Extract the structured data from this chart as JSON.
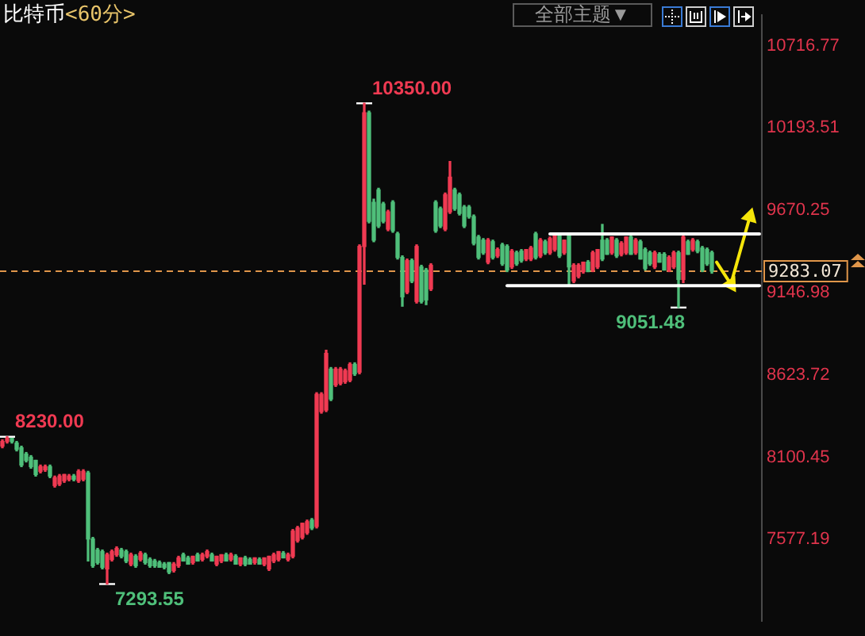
{
  "chart_data": {
    "type": "candlestick",
    "title": "比特币",
    "subtitle": "<60分>",
    "categories": [
      null,
      null,
      null,
      null,
      null,
      null,
      null,
      null,
      null,
      null,
      null,
      null,
      null,
      null,
      null,
      null,
      null,
      null,
      null,
      null,
      null,
      null,
      null,
      null,
      null,
      null,
      null,
      null,
      null,
      null,
      null,
      null,
      null,
      null,
      null,
      null,
      null,
      null,
      null,
      null,
      null,
      null,
      null,
      null,
      null,
      null,
      null,
      null,
      null,
      null,
      null,
      null,
      null,
      null,
      null,
      null,
      null,
      null,
      null,
      null,
      null,
      null,
      null,
      null,
      null,
      null,
      null,
      null,
      null,
      null,
      null,
      null,
      null,
      null,
      null,
      null,
      null,
      null,
      null,
      null,
      null,
      null,
      null,
      null,
      null,
      null,
      null,
      null,
      null,
      null,
      null,
      null,
      null,
      null,
      null,
      null,
      null,
      null,
      null,
      null,
      null,
      null,
      null,
      null,
      null,
      null,
      null,
      null,
      null,
      null,
      null,
      null,
      null,
      null,
      null,
      null,
      null,
      null,
      null,
      null,
      null,
      null,
      null,
      null,
      null,
      null,
      null,
      null,
      null,
      null,
      null,
      null,
      null,
      null,
      null,
      null,
      null,
      null,
      null,
      null,
      null,
      null,
      null,
      null,
      null,
      null,
      null,
      null,
      null,
      null,
      null,
      null,
      null,
      null,
      null,
      null,
      null,
      null,
      null,
      null
    ],
    "ohlc": [
      [
        8170,
        8210,
        8160,
        8200
      ],
      [
        8200,
        8230,
        8190,
        8220
      ],
      [
        8220,
        8220,
        8190,
        8200
      ],
      [
        8190,
        8200,
        8140,
        8150
      ],
      [
        8160,
        8170,
        8040,
        8050
      ],
      [
        8120,
        8130,
        8070,
        8080
      ],
      [
        8100,
        8110,
        8030,
        8040
      ],
      [
        8080,
        8080,
        7980,
        7990
      ],
      [
        8010,
        8050,
        8000,
        8040
      ],
      [
        8020,
        8050,
        8010,
        8040
      ],
      [
        8040,
        8050,
        7970,
        7980
      ],
      [
        7920,
        7980,
        7910,
        7970
      ],
      [
        7930,
        7990,
        7920,
        7980
      ],
      [
        7950,
        7990,
        7940,
        7990
      ],
      [
        7960,
        7990,
        7950,
        7980
      ],
      [
        7980,
        7990,
        7950,
        7960
      ],
      [
        7950,
        8020,
        7940,
        8010
      ],
      [
        7960,
        8020,
        7950,
        8010
      ],
      [
        8000,
        8010,
        7440,
        7580
      ],
      [
        7580,
        7590,
        7400,
        7410
      ],
      [
        7510,
        7520,
        7420,
        7430
      ],
      [
        7500,
        7510,
        7390,
        7400
      ],
      [
        7390,
        7490,
        7293.55,
        7480
      ],
      [
        7450,
        7510,
        7440,
        7500
      ],
      [
        7480,
        7530,
        7470,
        7520
      ],
      [
        7510,
        7520,
        7460,
        7470
      ],
      [
        7500,
        7510,
        7430,
        7440
      ],
      [
        7420,
        7490,
        7410,
        7480
      ],
      [
        7470,
        7480,
        7400,
        7410
      ],
      [
        7450,
        7500,
        7440,
        7490
      ],
      [
        7480,
        7490,
        7420,
        7430
      ],
      [
        7450,
        7460,
        7400,
        7410
      ],
      [
        7440,
        7450,
        7400,
        7410
      ],
      [
        7430,
        7440,
        7400,
        7400
      ],
      [
        7420,
        7430,
        7390,
        7400
      ],
      [
        7430,
        7430,
        7360,
        7370
      ],
      [
        7380,
        7430,
        7370,
        7420
      ],
      [
        7410,
        7470,
        7400,
        7460
      ],
      [
        7480,
        7490,
        7440,
        7440
      ],
      [
        7460,
        7470,
        7420,
        7420
      ],
      [
        7430,
        7470,
        7420,
        7470
      ],
      [
        7480,
        7490,
        7440,
        7440
      ],
      [
        7450,
        7490,
        7440,
        7480
      ],
      [
        7470,
        7510,
        7460,
        7500
      ],
      [
        7480,
        7490,
        7440,
        7440
      ],
      [
        7420,
        7470,
        7410,
        7470
      ],
      [
        7440,
        7480,
        7430,
        7480
      ],
      [
        7480,
        7490,
        7440,
        7440
      ],
      [
        7450,
        7490,
        7440,
        7480
      ],
      [
        7470,
        7480,
        7420,
        7420
      ],
      [
        7420,
        7460,
        7410,
        7460
      ],
      [
        7460,
        7470,
        7410,
        7420
      ],
      [
        7450,
        7460,
        7420,
        7420
      ],
      [
        7430,
        7460,
        7420,
        7460
      ],
      [
        7450,
        7460,
        7420,
        7420
      ],
      [
        7420,
        7460,
        7410,
        7460
      ],
      [
        7390,
        7470,
        7380,
        7470
      ],
      [
        7440,
        7490,
        7430,
        7480
      ],
      [
        7450,
        7500,
        7440,
        7500
      ],
      [
        7490,
        7500,
        7460,
        7460
      ],
      [
        7450,
        7490,
        7440,
        7480
      ],
      [
        7470,
        7640,
        7460,
        7630
      ],
      [
        7570,
        7660,
        7560,
        7650
      ],
      [
        7590,
        7680,
        7580,
        7680
      ],
      [
        7620,
        7700,
        7610,
        7690
      ],
      [
        7700,
        7710,
        7640,
        7650
      ],
      [
        7660,
        8510,
        7650,
        8500
      ],
      [
        8390,
        8510,
        8380,
        8500
      ],
      [
        8400,
        8780,
        8390,
        8760
      ],
      [
        8660,
        8670,
        8460,
        8470
      ],
      [
        8560,
        8670,
        8550,
        8660
      ],
      [
        8570,
        8670,
        8560,
        8660
      ],
      [
        8580,
        8660,
        8570,
        8650
      ],
      [
        8590,
        8700,
        8580,
        8690
      ],
      [
        8690,
        8700,
        8620,
        8630
      ],
      [
        8640,
        9450,
        8630,
        9440
      ],
      [
        9440,
        10350,
        9200,
        10290
      ],
      [
        10290,
        10300,
        9590,
        9600
      ],
      [
        9720,
        9740,
        9470,
        9480
      ],
      [
        9800,
        9810,
        9560,
        9570
      ],
      [
        9710,
        9720,
        9590,
        9600
      ],
      [
        9550,
        9670,
        9540,
        9660
      ],
      [
        9720,
        9730,
        9530,
        9540
      ],
      [
        9520,
        9530,
        9360,
        9370
      ],
      [
        9370,
        9380,
        9060,
        9120
      ],
      [
        9150,
        9360,
        9140,
        9350
      ],
      [
        9350,
        9360,
        9210,
        9220
      ],
      [
        9090,
        9450,
        9080,
        9440
      ],
      [
        9310,
        9320,
        9080,
        9090
      ],
      [
        9290,
        9300,
        9070,
        9100
      ],
      [
        9170,
        9330,
        9160,
        9320
      ],
      [
        9720,
        9730,
        9530,
        9540
      ],
      [
        9680,
        9690,
        9560,
        9570
      ],
      [
        9550,
        9780,
        9540,
        9770
      ],
      [
        9660,
        9980,
        9650,
        9880
      ],
      [
        9800,
        9810,
        9670,
        9680
      ],
      [
        9770,
        9780,
        9640,
        9650
      ],
      [
        9690,
        9700,
        9560,
        9570
      ],
      [
        9690,
        9700,
        9620,
        9630
      ],
      [
        9630,
        9640,
        9450,
        9460
      ],
      [
        9500,
        9510,
        9360,
        9370
      ],
      [
        9480,
        9490,
        9390,
        9400
      ],
      [
        9340,
        9490,
        9330,
        9480
      ],
      [
        9470,
        9480,
        9360,
        9370
      ],
      [
        9380,
        9430,
        9370,
        9420
      ],
      [
        9450,
        9460,
        9320,
        9330
      ],
      [
        9440,
        9450,
        9280,
        9290
      ],
      [
        9310,
        9420,
        9300,
        9410
      ],
      [
        9400,
        9410,
        9320,
        9330
      ],
      [
        9410,
        9420,
        9340,
        9350
      ],
      [
        9360,
        9420,
        9350,
        9420
      ],
      [
        9360,
        9440,
        9350,
        9430
      ],
      [
        9520,
        9530,
        9360,
        9370
      ],
      [
        9380,
        9490,
        9370,
        9480
      ],
      [
        9470,
        9480,
        9390,
        9400
      ],
      [
        9400,
        9500,
        9390,
        9490
      ],
      [
        9420,
        9520,
        9410,
        9510
      ],
      [
        9510,
        9520,
        9370,
        9380
      ],
      [
        9400,
        9480,
        9390,
        9480
      ],
      [
        9510,
        9520,
        9200,
        9310
      ],
      [
        9220,
        9330,
        9210,
        9320
      ],
      [
        9250,
        9330,
        9240,
        9320
      ],
      [
        9280,
        9340,
        9270,
        9340
      ],
      [
        9340,
        9350,
        9280,
        9280
      ],
      [
        9290,
        9410,
        9280,
        9400
      ],
      [
        9310,
        9420,
        9300,
        9420
      ],
      [
        9480,
        9580,
        9350,
        9360
      ],
      [
        9480,
        9490,
        9390,
        9390
      ],
      [
        9400,
        9500,
        9390,
        9500
      ],
      [
        9480,
        9490,
        9370,
        9380
      ],
      [
        9390,
        9470,
        9380,
        9460
      ],
      [
        9400,
        9500,
        9390,
        9500
      ],
      [
        9500,
        9510,
        9390,
        9390
      ],
      [
        9400,
        9490,
        9390,
        9480
      ],
      [
        9470,
        9480,
        9360,
        9360
      ],
      [
        9420,
        9430,
        9290,
        9300
      ],
      [
        9400,
        9410,
        9320,
        9330
      ],
      [
        9310,
        9410,
        9300,
        9400
      ],
      [
        9390,
        9400,
        9340,
        9340
      ],
      [
        9390,
        9400,
        9290,
        9290
      ],
      [
        9290,
        9380,
        9280,
        9370
      ],
      [
        9310,
        9410,
        9300,
        9400
      ],
      [
        9400,
        9410,
        9051.48,
        9230
      ],
      [
        9230,
        9520,
        9210,
        9500
      ],
      [
        9470,
        9480,
        9390,
        9390
      ],
      [
        9420,
        9490,
        9410,
        9480
      ],
      [
        9470,
        9480,
        9400,
        9410
      ],
      [
        9430,
        9440,
        9280,
        9290
      ],
      [
        9420,
        9430,
        9320,
        9330
      ],
      [
        9400,
        9410,
        9270,
        9283.07
      ],
      null,
      null,
      null,
      null,
      null,
      null,
      null,
      null,
      null,
      null
    ],
    "value_labels": [
      null,
      "8230.00",
      null,
      null,
      null,
      null,
      null,
      null,
      null,
      null,
      null,
      null,
      null,
      null,
      null,
      null,
      null,
      null,
      null,
      null,
      null,
      null,
      "7293.55",
      null,
      null,
      null,
      null,
      null,
      null,
      null,
      null,
      null,
      null,
      null,
      null,
      null,
      null,
      null,
      null,
      null,
      null,
      null,
      null,
      null,
      null,
      null,
      null,
      null,
      null,
      null,
      null,
      null,
      null,
      null,
      null,
      null,
      null,
      null,
      null,
      null,
      null,
      null,
      null,
      null,
      null,
      null,
      null,
      null,
      null,
      null,
      null,
      null,
      null,
      null,
      null,
      null,
      "10350.00",
      null,
      null,
      null,
      null,
      null,
      null,
      null,
      null,
      null,
      null,
      null,
      null,
      null,
      null,
      null,
      null,
      null,
      null,
      null,
      null,
      null,
      null,
      null,
      null,
      null,
      null,
      null,
      null,
      null,
      null,
      null,
      null,
      null,
      null,
      null,
      null,
      null,
      null,
      null,
      null,
      null,
      null,
      null,
      null,
      null,
      null,
      null,
      null,
      null,
      null,
      null,
      null,
      null,
      null,
      null,
      null,
      null,
      null,
      null,
      null,
      null,
      null,
      null,
      null,
      null,
      "9051.48",
      null,
      null,
      null,
      null,
      null,
      null,
      null,
      null,
      null,
      null,
      null,
      null,
      null,
      null,
      null,
      null,
      null
    ],
    "colors": [
      "#f03a52",
      "#f03a52",
      "#4fbf7a",
      "#4fbf7a",
      "#4fbf7a",
      "#4fbf7a",
      "#4fbf7a",
      "#4fbf7a",
      "#f03a52",
      "#f03a52",
      "#4fbf7a",
      "#f03a52",
      "#f03a52",
      "#f03a52",
      "#f03a52",
      "#4fbf7a",
      "#f03a52",
      "#f03a52",
      "#4fbf7a",
      "#4fbf7a",
      "#4fbf7a",
      "#4fbf7a",
      "#f03a52",
      "#f03a52",
      "#f03a52",
      "#4fbf7a",
      "#4fbf7a",
      "#f03a52",
      "#4fbf7a",
      "#f03a52",
      "#4fbf7a",
      "#4fbf7a",
      "#4fbf7a",
      "#4fbf7a",
      "#4fbf7a",
      "#4fbf7a",
      "#f03a52",
      "#f03a52",
      "#4fbf7a",
      "#4fbf7a",
      "#f03a52",
      "#4fbf7a",
      "#f03a52",
      "#f03a52",
      "#4fbf7a",
      "#f03a52",
      "#f03a52",
      "#4fbf7a",
      "#f03a52",
      "#4fbf7a",
      "#f03a52",
      "#4fbf7a",
      "#4fbf7a",
      "#f03a52",
      "#4fbf7a",
      "#f03a52",
      "#f03a52",
      "#f03a52",
      "#f03a52",
      "#4fbf7a",
      "#f03a52",
      "#f03a52",
      "#f03a52",
      "#f03a52",
      "#f03a52",
      "#4fbf7a",
      "#f03a52",
      "#f03a52",
      "#f03a52",
      "#4fbf7a",
      "#f03a52",
      "#f03a52",
      "#f03a52",
      "#f03a52",
      "#4fbf7a",
      "#f03a52",
      "#f03a52",
      "#4fbf7a",
      "#4fbf7a",
      "#4fbf7a",
      "#4fbf7a",
      "#f03a52",
      "#4fbf7a",
      "#4fbf7a",
      "#4fbf7a",
      "#f03a52",
      "#4fbf7a",
      "#f03a52",
      "#4fbf7a",
      "#4fbf7a",
      "#f03a52",
      "#4fbf7a",
      "#4fbf7a",
      "#f03a52",
      "#f03a52",
      "#4fbf7a",
      "#4fbf7a",
      "#4fbf7a",
      "#4fbf7a",
      "#4fbf7a",
      "#4fbf7a",
      "#4fbf7a",
      "#f03a52",
      "#4fbf7a",
      "#f03a52",
      "#4fbf7a",
      "#4fbf7a",
      "#f03a52",
      "#4fbf7a",
      "#4fbf7a",
      "#f03a52",
      "#f03a52",
      "#4fbf7a",
      "#f03a52",
      "#4fbf7a",
      "#f03a52",
      "#f03a52",
      "#4fbf7a",
      "#f03a52",
      "#4fbf7a",
      "#f03a52",
      "#f03a52",
      "#f03a52",
      "#4fbf7a",
      "#f03a52",
      "#f03a52",
      "#4fbf7a",
      "#4fbf7a",
      "#f03a52",
      "#4fbf7a",
      "#f03a52",
      "#f03a52",
      "#4fbf7a",
      "#f03a52",
      "#4fbf7a",
      "#4fbf7a",
      "#4fbf7a",
      "#f03a52",
      "#4fbf7a",
      "#4fbf7a",
      "#f03a52",
      "#f03a52",
      "#4fbf7a",
      "#f03a52",
      "#4fbf7a",
      "#f03a52",
      "#4fbf7a",
      "#4fbf7a",
      "#4fbf7a",
      "#4fbf7a",
      null,
      null,
      null,
      null,
      null,
      null,
      null,
      null,
      null,
      null
    ],
    "series": [
      {
        "type": "line",
        "color": "#ffffff",
        "values": [
          null,
          null,
          null,
          null,
          null,
          null,
          null,
          null,
          null,
          null,
          null,
          null,
          null,
          null,
          null,
          null,
          null,
          null,
          null,
          null,
          null,
          null,
          null,
          null,
          null,
          null,
          null,
          null,
          null,
          null,
          null,
          null,
          null,
          null,
          null,
          null,
          null,
          null,
          null,
          null,
          null,
          null,
          null,
          null,
          null,
          null,
          null,
          null,
          null,
          null,
          null,
          null,
          null,
          null,
          null,
          null,
          null,
          null,
          null,
          null,
          null,
          null,
          null,
          null,
          null,
          null,
          null,
          null,
          null,
          null,
          null,
          null,
          null,
          null,
          null,
          null,
          null,
          null,
          null,
          null,
          null,
          null,
          null,
          null,
          null,
          null,
          null,
          null,
          null,
          null,
          null,
          null,
          null,
          null,
          null,
          null,
          null,
          null,
          null,
          null,
          null,
          null,
          null,
          null,
          null,
          null,
          null,
          null,
          null,
          null,
          null,
          null,
          null,
          null,
          null,
          9520,
          9520,
          9520,
          9520,
          9520,
          9520,
          9520,
          9520,
          9520,
          9520,
          9520,
          9520,
          9520,
          9520,
          9520,
          9520,
          9520,
          9520,
          9520,
          9520,
          9520,
          9520,
          9520,
          9520,
          9520,
          9520,
          9520,
          9520,
          9520,
          9520,
          9520,
          9520,
          9520,
          9520,
          9520,
          9520,
          9520,
          9520,
          9520,
          9520,
          9520,
          9520,
          9520,
          9520,
          9520
        ]
      },
      {
        "type": "line",
        "color": "#ffffff",
        "values": [
          null,
          null,
          null,
          null,
          null,
          null,
          null,
          null,
          null,
          null,
          null,
          null,
          null,
          null,
          null,
          null,
          null,
          null,
          null,
          null,
          null,
          null,
          null,
          null,
          null,
          null,
          null,
          null,
          null,
          null,
          null,
          null,
          null,
          null,
          null,
          null,
          null,
          null,
          null,
          null,
          null,
          null,
          null,
          null,
          null,
          null,
          null,
          null,
          null,
          null,
          null,
          null,
          null,
          null,
          null,
          null,
          null,
          null,
          null,
          null,
          null,
          null,
          null,
          null,
          null,
          null,
          null,
          null,
          null,
          null,
          null,
          null,
          null,
          null,
          null,
          null,
          null,
          null,
          null,
          null,
          null,
          null,
          null,
          null,
          null,
          null,
          null,
          null,
          null,
          null,
          null,
          null,
          null,
          null,
          null,
          null,
          null,
          null,
          null,
          null,
          null,
          null,
          null,
          null,
          null,
          null,
          9190,
          9190,
          9190,
          9190,
          9190,
          9190,
          9190,
          9190,
          9190,
          9190,
          9190,
          9190,
          9190,
          9190,
          9190,
          9190,
          9190,
          9190,
          9190,
          9190,
          9190,
          9190,
          9190,
          9190,
          9190,
          9190,
          9190,
          9190,
          9190,
          9190,
          9190,
          9190,
          9190,
          9190,
          9190,
          9190,
          9190,
          9190,
          9190,
          9190,
          9190,
          9190,
          9190,
          9190,
          9190,
          9190,
          9190,
          9190,
          9190,
          9190,
          9190,
          9190,
          9190,
          9190
        ]
      },
      {
        "type": "line",
        "color": "#f5e50a",
        "marker": "triangle",
        "values": [
          null,
          null,
          null,
          null,
          null,
          null,
          null,
          null,
          null,
          null,
          null,
          null,
          null,
          null,
          null,
          null,
          null,
          null,
          null,
          null,
          null,
          null,
          null,
          null,
          null,
          null,
          null,
          null,
          null,
          null,
          null,
          null,
          null,
          null,
          null,
          null,
          null,
          null,
          null,
          null,
          null,
          null,
          null,
          null,
          null,
          null,
          null,
          null,
          null,
          null,
          null,
          null,
          null,
          null,
          null,
          null,
          null,
          null,
          null,
          null,
          null,
          null,
          null,
          null,
          null,
          null,
          null,
          null,
          null,
          null,
          null,
          null,
          null,
          null,
          null,
          null,
          null,
          null,
          null,
          null,
          null,
          null,
          null,
          null,
          null,
          null,
          null,
          null,
          null,
          null,
          null,
          null,
          null,
          null,
          null,
          null,
          null,
          null,
          null,
          null,
          null,
          null,
          null,
          null,
          null,
          null,
          null,
          null,
          null,
          null,
          null,
          null,
          null,
          null,
          null,
          null,
          null,
          null,
          null,
          null,
          null,
          null,
          null,
          null,
          null,
          null,
          null,
          null,
          null,
          null,
          null,
          null,
          null,
          null,
          null,
          null,
          null,
          null,
          null,
          null,
          null,
          null,
          null,
          null,
          null,
          null,
          null,
          null,
          null,
          null,
          9340,
          null,
          null,
          9200,
          null,
          null,
          null,
          9630,
          null,
          null
        ]
      }
    ],
    "ylim": [
      7060,
      10910
    ],
    "yticks": [
      7577.19,
      8100.45,
      8623.72,
      9146.98,
      9670.25,
      10193.51,
      10716.77
    ],
    "tick_labels": "y",
    "ref_lines": [
      {
        "axis": "y",
        "value": 9283.07,
        "label": "9283.07",
        "color": "#e0964a",
        "line_style": "dashed"
      }
    ],
    "annotations": [
      "全部主题▼"
    ]
  }
}
